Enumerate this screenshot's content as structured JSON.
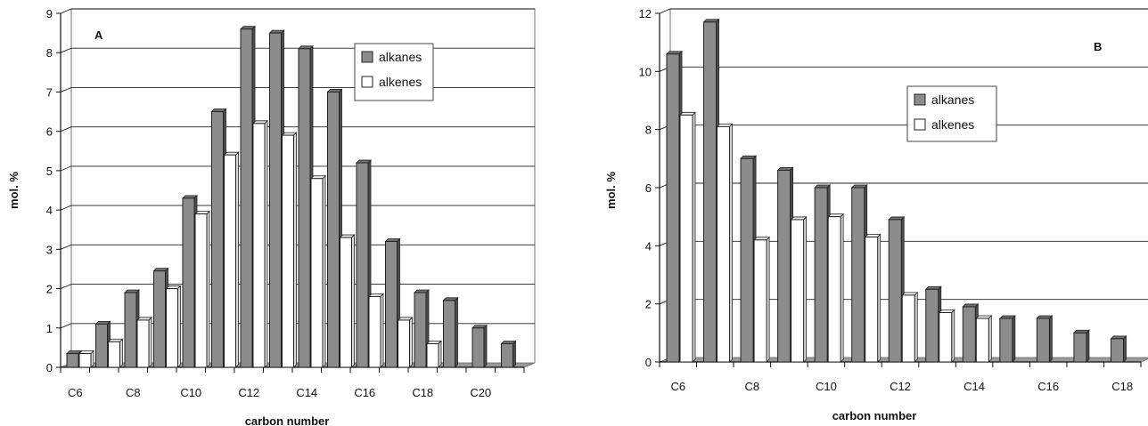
{
  "chart_data": [
    {
      "type": "bar",
      "panel_label": "A",
      "xlabel": "carbon number",
      "ylabel": "mol. %",
      "ylim": [
        0,
        9
      ],
      "yticks": [
        0,
        1,
        2,
        3,
        4,
        5,
        6,
        7,
        8,
        9
      ],
      "categories": [
        "C6",
        "C7",
        "C8",
        "C9",
        "C10",
        "C11",
        "C12",
        "C13",
        "C14",
        "C15",
        "C16",
        "C17",
        "C18",
        "C19",
        "C20",
        "C21"
      ],
      "tick_labels": [
        "C6",
        "",
        "C8",
        "",
        "C10",
        "",
        "C12",
        "",
        "C14",
        "",
        "C16",
        "",
        "C18",
        "",
        "C20",
        ""
      ],
      "series": [
        {
          "name": "alkanes",
          "color": "#8c8c8c",
          "values": [
            0.35,
            1.1,
            1.9,
            2.45,
            4.3,
            6.5,
            8.6,
            8.5,
            8.1,
            7.0,
            5.2,
            3.2,
            1.9,
            1.7,
            1.0,
            0.6
          ]
        },
        {
          "name": "alkenes",
          "color": "#ffffff",
          "values": [
            0.35,
            0.65,
            1.2,
            2.0,
            3.9,
            5.4,
            6.2,
            5.9,
            4.8,
            3.3,
            1.8,
            1.2,
            0.6,
            null,
            null,
            null
          ]
        }
      ],
      "legend": "top-right",
      "grid": true
    },
    {
      "type": "bar",
      "panel_label": "B",
      "xlabel": "carbon number",
      "ylabel": "mol. %",
      "ylim": [
        0,
        12
      ],
      "yticks": [
        0,
        2,
        4,
        6,
        8,
        10,
        12
      ],
      "categories": [
        "C6",
        "C7",
        "C8",
        "C9",
        "C10",
        "C11",
        "C12",
        "C13",
        "C14",
        "C15",
        "C16",
        "C17",
        "C18"
      ],
      "tick_labels": [
        "C6",
        "",
        "C8",
        "",
        "C10",
        "",
        "C12",
        "",
        "C14",
        "",
        "C16",
        "",
        "C18"
      ],
      "series": [
        {
          "name": "alkanes",
          "color": "#8c8c8c",
          "values": [
            10.6,
            11.7,
            7.0,
            6.6,
            6.0,
            6.0,
            4.9,
            2.5,
            1.9,
            1.5,
            1.5,
            1.0,
            0.8
          ]
        },
        {
          "name": "alkenes",
          "color": "#ffffff",
          "values": [
            8.5,
            8.1,
            4.2,
            4.9,
            5.0,
            4.3,
            2.3,
            1.7,
            1.5,
            null,
            null,
            null,
            null
          ]
        }
      ],
      "legend": "top-center",
      "grid": true
    }
  ]
}
